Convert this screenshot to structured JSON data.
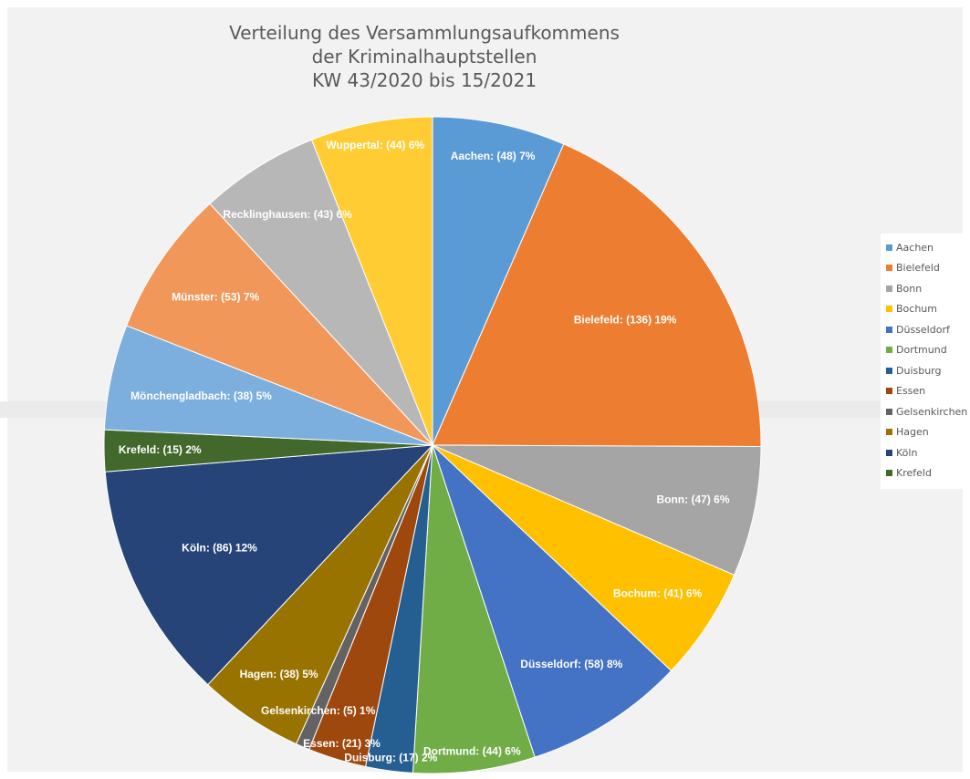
{
  "chart_data": {
    "type": "pie",
    "title": [
      "Verteilung des Versammlungsaufkommens",
      "der Kriminalhauptstellen",
      "KW 43/2020 bis 15/2021"
    ],
    "legend_position": "right",
    "slices": [
      {
        "name": "Aachen",
        "value": 48,
        "label": "Aachen: (48) 7%",
        "color": "#5b9bd5"
      },
      {
        "name": "Bielefeld",
        "value": 136,
        "label": "Bielefeld: (136) 19%",
        "color": "#ed7d31"
      },
      {
        "name": "Bonn",
        "value": 47,
        "label": "Bonn: (47) 6%",
        "color": "#a5a5a5"
      },
      {
        "name": "Bochum",
        "value": 41,
        "label": "Bochum: (41) 6%",
        "color": "#ffc000"
      },
      {
        "name": "Düsseldorf",
        "value": 58,
        "label": "Düsseldorf: (58) 8%",
        "color": "#4472c4"
      },
      {
        "name": "Dortmund",
        "value": 44,
        "label": "Dortmund: (44) 6%",
        "color": "#70ad47"
      },
      {
        "name": "Duisburg",
        "value": 17,
        "label": "Duisburg: (17) 2%",
        "color": "#255e91"
      },
      {
        "name": "Essen",
        "value": 21,
        "label": "Essen: (21) 3%",
        "color": "#9e480e"
      },
      {
        "name": "Gelsenkirchen",
        "value": 5,
        "label": "Gelsenkirchen: (5) 1%",
        "color": "#636363"
      },
      {
        "name": "Hagen",
        "value": 38,
        "label": "Hagen: (38) 5%",
        "color": "#997300"
      },
      {
        "name": "Köln",
        "value": 86,
        "label": "Köln: (86) 12%",
        "color": "#264478"
      },
      {
        "name": "Krefeld",
        "value": 15,
        "label": "Krefeld: (15) 2%",
        "color": "#43682b"
      },
      {
        "name": "Mönchengladbach",
        "value": 38,
        "label": "Mönchengladbach: (38) 5%",
        "color": "#7cafdd"
      },
      {
        "name": "Münster",
        "value": 53,
        "label": "Münster: (53) 7%",
        "color": "#f1975a"
      },
      {
        "name": "Recklinghausen",
        "value": 43,
        "label": "Recklinghausen: (43) 6%",
        "color": "#b7b7b7"
      },
      {
        "name": "Wuppertal",
        "value": 44,
        "label": "Wuppertal: (44) 6%",
        "color": "#ffcd33"
      }
    ],
    "legend_entries": [
      "Aachen",
      "Bielefeld",
      "Bonn",
      "Bochum",
      "Düsseldorf",
      "Dortmund",
      "Duisburg",
      "Essen",
      "Gelsenkirchen",
      "Hagen",
      "Köln",
      "Krefeld"
    ]
  }
}
